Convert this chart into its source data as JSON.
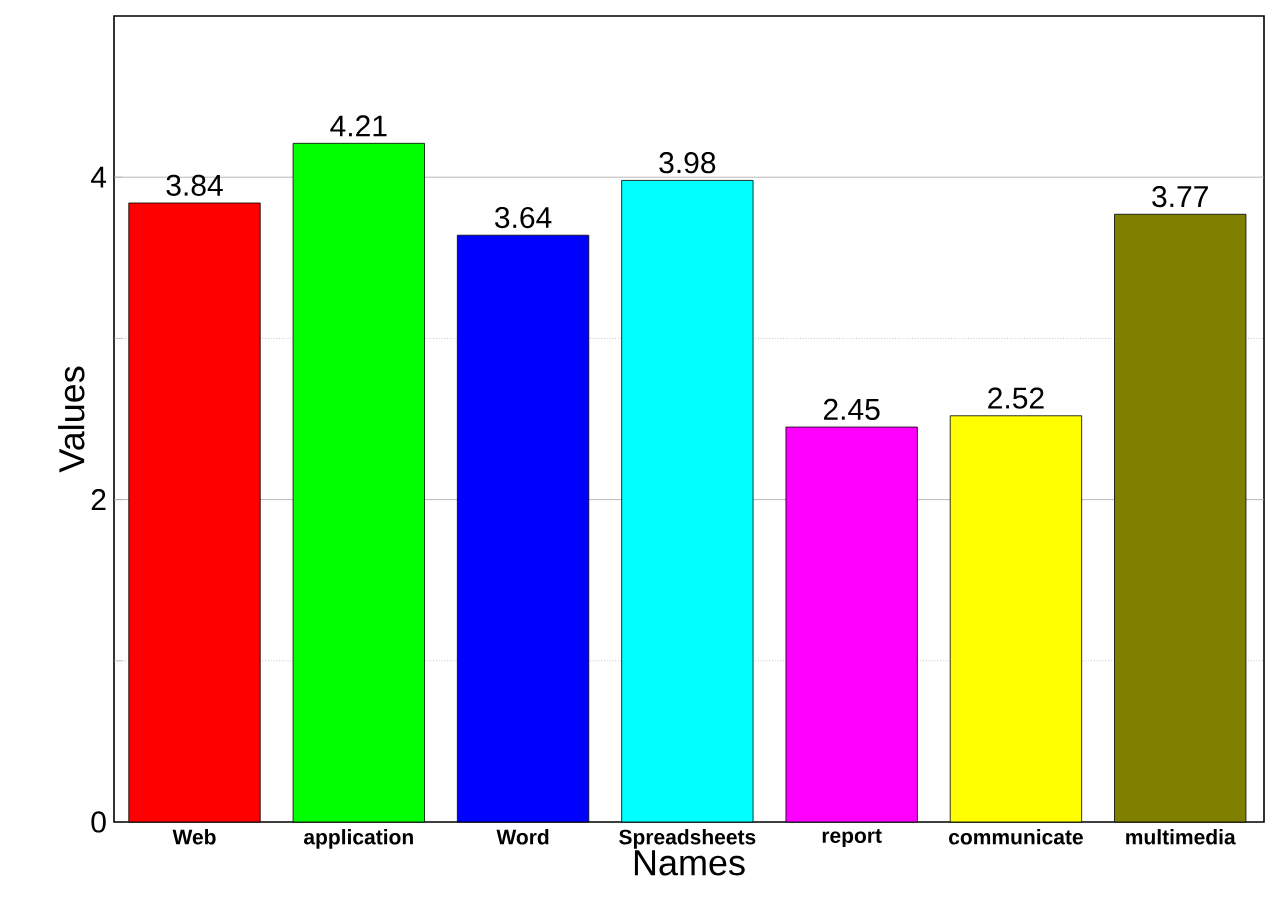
{
  "chart_data": {
    "type": "bar",
    "xlabel": "Names",
    "ylabel": "Values",
    "categories": [
      "Web",
      "application",
      "Word",
      "Spreadsheets",
      "report",
      "communicate",
      "multimedia"
    ],
    "values": [
      3.84,
      4.21,
      3.64,
      3.98,
      2.45,
      2.52,
      3.77
    ],
    "colors": [
      "#ff0000",
      "#00ff00",
      "#0000ff",
      "#00ffff",
      "#ff00ff",
      "#ffff00",
      "#808000"
    ],
    "ylim": [
      0,
      5
    ],
    "yticks": [
      0,
      {
        "value": 1,
        "label": null
      },
      2,
      {
        "value": 3,
        "label": null
      },
      4
    ],
    "grid": "y",
    "data_labels": true
  }
}
